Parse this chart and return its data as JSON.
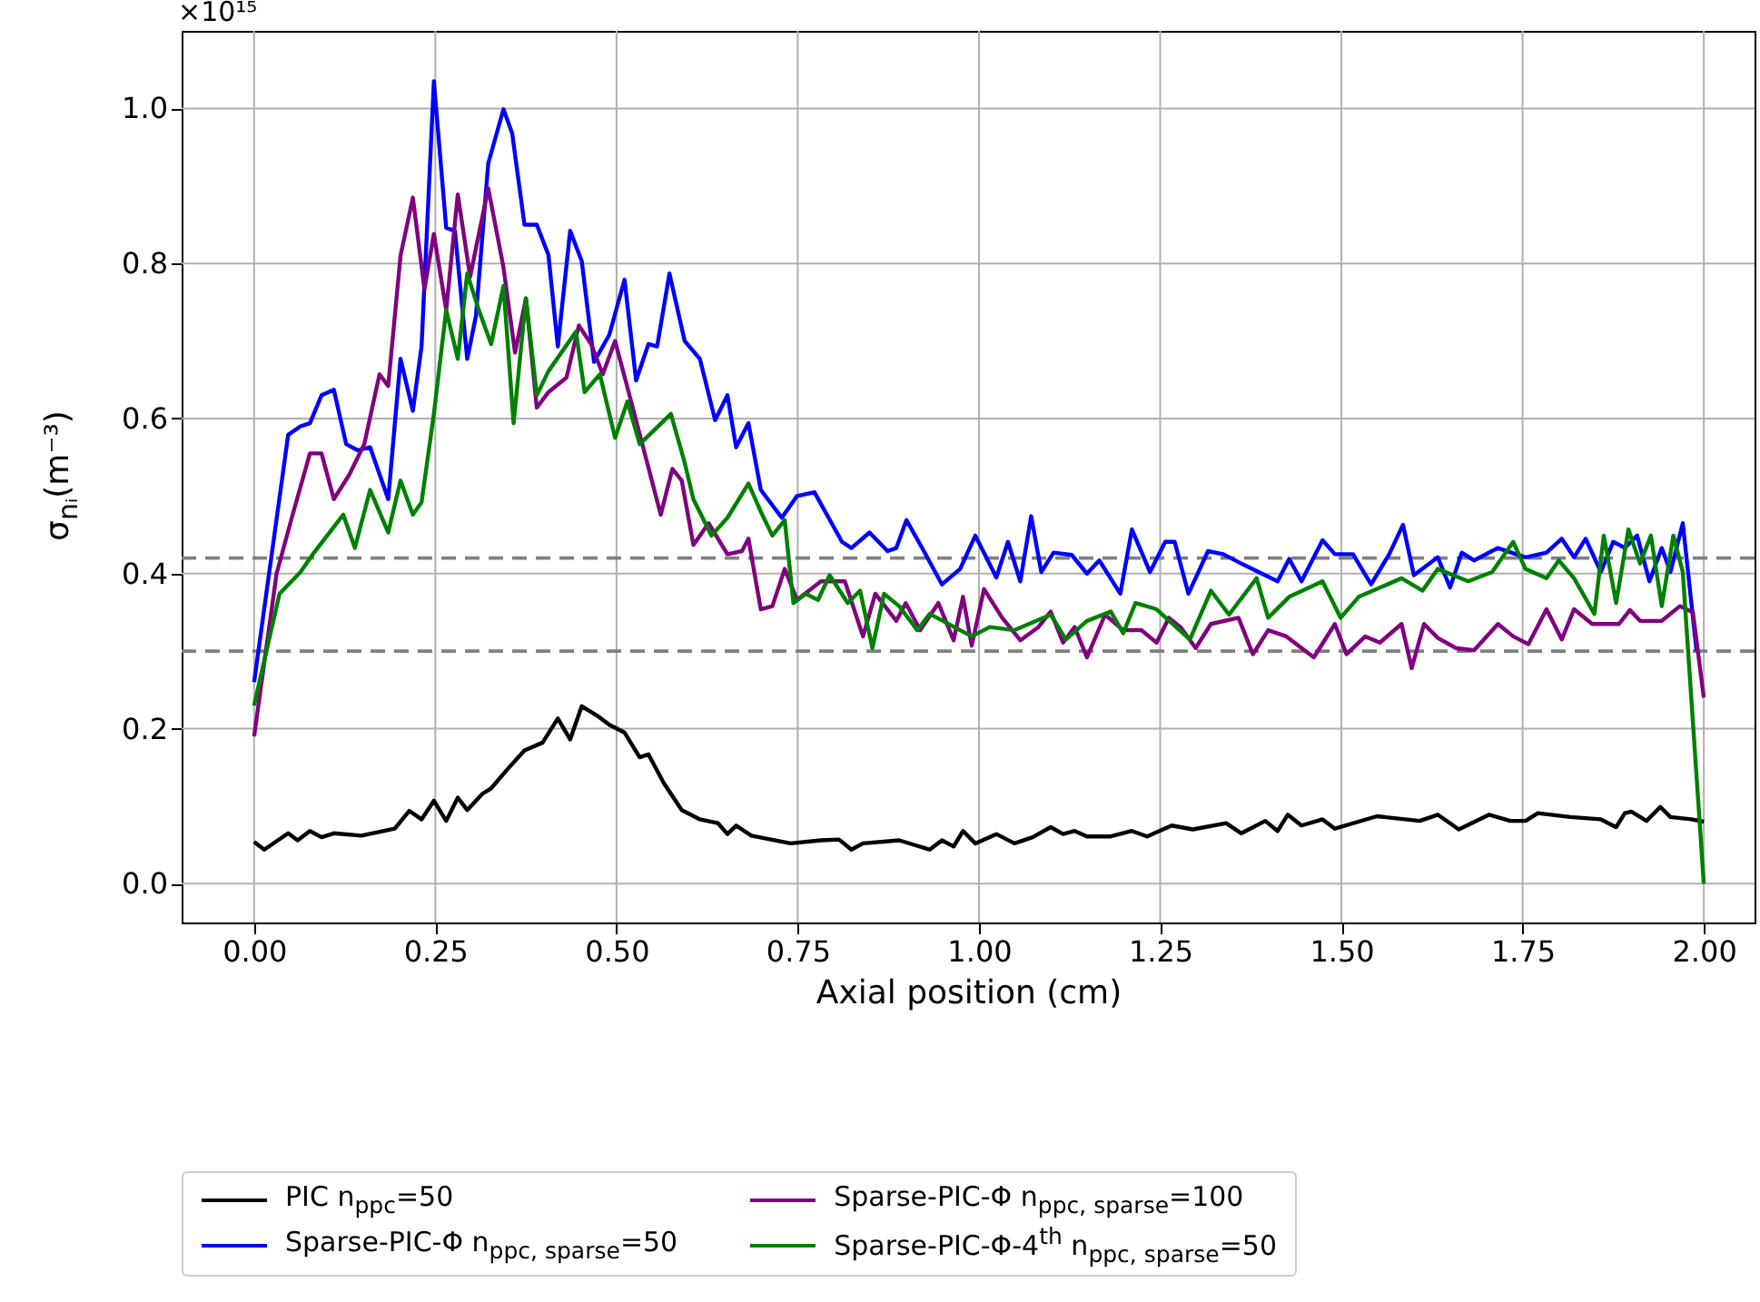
{
  "chart_data": {
    "type": "line",
    "xlabel": "Axial position (cm)",
    "ylabel": "σ$_{nᵢ}$(m⁻³)",
    "annotations": [
      "×10¹⁵"
    ],
    "xlim": [
      -0.1,
      2.07
    ],
    "ylim": [
      -0.05,
      1.1
    ],
    "xticks": [
      {
        "value": 0,
        "label": "0.00"
      },
      {
        "value": 0.25,
        "label": "0.25"
      },
      {
        "value": 0.5,
        "label": "0.50"
      },
      {
        "value": 0.75,
        "label": "0.75"
      },
      {
        "value": 1,
        "label": "1.00"
      },
      {
        "value": 1.25,
        "label": "1.25"
      },
      {
        "value": 1.5,
        "label": "1.50"
      },
      {
        "value": 1.75,
        "label": "1.75"
      },
      {
        "value": 2,
        "label": "2.00"
      }
    ],
    "yticks": [
      {
        "value": 0,
        "label": "0.0"
      },
      0.2,
      0.4,
      0.6,
      0.8,
      {
        "value": 1,
        "label": "1.0"
      }
    ],
    "grid": true,
    "legend": "bottom",
    "line_style": "solid",
    "ref_lines": [
      {
        "axis": "y",
        "value": 0.42,
        "color": "#808080",
        "line_style": "dashed"
      },
      {
        "axis": "y",
        "value": 0.3,
        "color": "#808080",
        "line_style": "dashed"
      }
    ],
    "series": [
      {
        "name": "PIC n$_{ppc}$=50",
        "color": "#000000",
        "x": [
          0,
          0.014,
          0.047,
          0.06,
          0.077,
          0.093,
          0.11,
          0.148,
          0.194,
          0.214,
          0.231,
          0.248,
          0.265,
          0.281,
          0.294,
          0.315,
          0.327,
          0.348,
          0.373,
          0.398,
          0.419,
          0.436,
          0.452,
          0.473,
          0.49,
          0.511,
          0.532,
          0.544,
          0.565,
          0.59,
          0.615,
          0.64,
          0.653,
          0.665,
          0.686,
          0.74,
          0.782,
          0.807,
          0.824,
          0.84,
          0.89,
          0.932,
          0.949,
          0.965,
          0.978,
          0.995,
          1.024,
          1.049,
          1.074,
          1.099,
          1.116,
          1.132,
          1.149,
          1.182,
          1.211,
          1.232,
          1.266,
          1.295,
          1.341,
          1.362,
          1.395,
          1.412,
          1.426,
          1.445,
          1.474,
          1.491,
          1.549,
          1.608,
          1.633,
          1.662,
          1.704,
          1.733,
          1.754,
          1.771,
          1.816,
          1.858,
          1.879,
          1.891,
          1.9,
          1.921,
          1.94,
          1.954,
          1.983,
          2.0
        ],
        "values": [
          0.054,
          0.044,
          0.065,
          0.056,
          0.068,
          0.06,
          0.065,
          0.062,
          0.071,
          0.094,
          0.083,
          0.107,
          0.081,
          0.111,
          0.095,
          0.116,
          0.123,
          0.146,
          0.172,
          0.182,
          0.213,
          0.186,
          0.229,
          0.217,
          0.205,
          0.195,
          0.163,
          0.167,
          0.13,
          0.095,
          0.083,
          0.078,
          0.064,
          0.075,
          0.062,
          0.052,
          0.056,
          0.057,
          0.044,
          0.052,
          0.056,
          0.044,
          0.056,
          0.048,
          0.068,
          0.052,
          0.064,
          0.052,
          0.06,
          0.073,
          0.064,
          0.068,
          0.061,
          0.061,
          0.068,
          0.061,
          0.075,
          0.07,
          0.078,
          0.065,
          0.081,
          0.068,
          0.089,
          0.075,
          0.083,
          0.071,
          0.087,
          0.081,
          0.089,
          0.07,
          0.089,
          0.081,
          0.081,
          0.091,
          0.086,
          0.083,
          0.073,
          0.091,
          0.093,
          0.081,
          0.099,
          0.086,
          0.083,
          0.08
        ]
      },
      {
        "name": "Sparse-PIC-Φ n$_{ppc, sparse}$=50",
        "color": "#0000ff",
        "x": [
          0,
          0.047,
          0.064,
          0.077,
          0.093,
          0.11,
          0.127,
          0.143,
          0.16,
          0.185,
          0.202,
          0.219,
          0.231,
          0.248,
          0.265,
          0.277,
          0.294,
          0.306,
          0.323,
          0.344,
          0.356,
          0.373,
          0.39,
          0.406,
          0.419,
          0.436,
          0.452,
          0.469,
          0.49,
          0.511,
          0.527,
          0.544,
          0.556,
          0.573,
          0.594,
          0.615,
          0.636,
          0.653,
          0.665,
          0.682,
          0.699,
          0.728,
          0.749,
          0.773,
          0.811,
          0.824,
          0.849,
          0.874,
          0.886,
          0.9,
          0.924,
          0.949,
          0.974,
          0.995,
          1.024,
          1.04,
          1.057,
          1.072,
          1.086,
          1.103,
          1.128,
          1.149,
          1.166,
          1.195,
          1.211,
          1.236,
          1.257,
          1.27,
          1.289,
          1.316,
          1.337,
          1.366,
          1.412,
          1.428,
          1.445,
          1.474,
          1.491,
          1.516,
          1.541,
          1.566,
          1.585,
          1.6,
          1.633,
          1.65,
          1.666,
          1.683,
          1.716,
          1.754,
          1.783,
          1.804,
          1.821,
          1.837,
          1.858,
          1.875,
          1.891,
          1.908,
          1.925,
          1.942,
          1.954,
          1.971,
          1.99
        ],
        "values": [
          0.26,
          0.579,
          0.59,
          0.594,
          0.63,
          0.637,
          0.567,
          0.559,
          0.563,
          0.496,
          0.677,
          0.61,
          0.693,
          1.035,
          0.846,
          0.842,
          0.677,
          0.732,
          0.929,
          0.999,
          0.968,
          0.85,
          0.85,
          0.811,
          0.693,
          0.842,
          0.803,
          0.673,
          0.708,
          0.779,
          0.649,
          0.696,
          0.693,
          0.787,
          0.7,
          0.677,
          0.598,
          0.63,
          0.563,
          0.594,
          0.508,
          0.472,
          0.5,
          0.505,
          0.441,
          0.433,
          0.453,
          0.429,
          0.433,
          0.469,
          0.429,
          0.386,
          0.406,
          0.449,
          0.395,
          0.441,
          0.39,
          0.474,
          0.402,
          0.427,
          0.424,
          0.4,
          0.417,
          0.374,
          0.457,
          0.402,
          0.441,
          0.441,
          0.374,
          0.429,
          0.425,
          0.411,
          0.39,
          0.419,
          0.39,
          0.443,
          0.425,
          0.425,
          0.386,
          0.425,
          0.463,
          0.398,
          0.421,
          0.382,
          0.427,
          0.417,
          0.433,
          0.421,
          0.427,
          0.445,
          0.421,
          0.445,
          0.402,
          0.441,
          0.433,
          0.449,
          0.39,
          0.433,
          0.402,
          0.465,
          0.3
        ]
      },
      {
        "name": "Sparse-PIC-Φ n$_{ppc, sparse}$=100",
        "color": "#800080",
        "x": [
          0,
          0.031,
          0.052,
          0.077,
          0.093,
          0.11,
          0.131,
          0.152,
          0.173,
          0.185,
          0.202,
          0.219,
          0.235,
          0.248,
          0.265,
          0.281,
          0.298,
          0.323,
          0.344,
          0.36,
          0.375,
          0.39,
          0.406,
          0.431,
          0.448,
          0.465,
          0.481,
          0.498,
          0.519,
          0.54,
          0.561,
          0.577,
          0.59,
          0.606,
          0.627,
          0.653,
          0.673,
          0.682,
          0.699,
          0.715,
          0.732,
          0.749,
          0.782,
          0.815,
          0.84,
          0.857,
          0.886,
          0.899,
          0.919,
          0.944,
          0.965,
          0.978,
          0.99,
          1.007,
          1.032,
          1.057,
          1.082,
          1.099,
          1.116,
          1.132,
          1.149,
          1.174,
          1.199,
          1.224,
          1.245,
          1.262,
          1.278,
          1.299,
          1.32,
          1.358,
          1.378,
          1.399,
          1.424,
          1.462,
          1.491,
          1.507,
          1.533,
          1.553,
          1.583,
          1.597,
          1.614,
          1.633,
          1.658,
          1.683,
          1.716,
          1.737,
          1.758,
          1.783,
          1.804,
          1.821,
          1.846,
          1.883,
          1.898,
          1.912,
          1.942,
          1.967,
          1.985,
          2.0
        ],
        "values": [
          0.19,
          0.4,
          0.472,
          0.555,
          0.555,
          0.496,
          0.527,
          0.567,
          0.657,
          0.642,
          0.81,
          0.885,
          0.767,
          0.838,
          0.74,
          0.889,
          0.783,
          0.897,
          0.795,
          0.685,
          0.755,
          0.614,
          0.634,
          0.653,
          0.72,
          0.696,
          0.657,
          0.7,
          0.626,
          0.551,
          0.476,
          0.535,
          0.52,
          0.437,
          0.465,
          0.425,
          0.429,
          0.445,
          0.354,
          0.358,
          0.406,
          0.366,
          0.39,
          0.39,
          0.319,
          0.374,
          0.339,
          0.362,
          0.327,
          0.362,
          0.314,
          0.37,
          0.307,
          0.38,
          0.343,
          0.314,
          0.331,
          0.351,
          0.311,
          0.331,
          0.292,
          0.347,
          0.327,
          0.327,
          0.311,
          0.343,
          0.331,
          0.304,
          0.335,
          0.343,
          0.296,
          0.327,
          0.319,
          0.292,
          0.335,
          0.296,
          0.319,
          0.311,
          0.335,
          0.278,
          0.335,
          0.317,
          0.304,
          0.301,
          0.335,
          0.319,
          0.309,
          0.354,
          0.315,
          0.354,
          0.335,
          0.335,
          0.353,
          0.339,
          0.339,
          0.358,
          0.35,
          0.24
        ]
      },
      {
        "name": "Sparse-PIC-Φ-4$^{th}$ n$_{ppc, sparse}$=50",
        "color": "#008000",
        "x": [
          0,
          0.035,
          0.064,
          0.081,
          0.123,
          0.139,
          0.16,
          0.185,
          0.202,
          0.219,
          0.231,
          0.248,
          0.265,
          0.281,
          0.294,
          0.31,
          0.327,
          0.344,
          0.358,
          0.375,
          0.39,
          0.406,
          0.444,
          0.456,
          0.477,
          0.498,
          0.515,
          0.532,
          0.575,
          0.594,
          0.606,
          0.631,
          0.653,
          0.682,
          0.699,
          0.715,
          0.732,
          0.744,
          0.761,
          0.778,
          0.794,
          0.819,
          0.836,
          0.853,
          0.869,
          0.89,
          0.915,
          0.932,
          0.99,
          1.015,
          1.049,
          1.099,
          1.12,
          1.149,
          1.182,
          1.199,
          1.216,
          1.245,
          1.291,
          1.32,
          1.345,
          1.383,
          1.399,
          1.428,
          1.474,
          1.499,
          1.524,
          1.583,
          1.612,
          1.633,
          1.675,
          1.708,
          1.737,
          1.754,
          1.783,
          1.8,
          1.821,
          1.849,
          1.862,
          1.879,
          1.896,
          1.912,
          1.927,
          1.942,
          1.958,
          1.971,
          2.0
        ],
        "values": [
          0.23,
          0.374,
          0.402,
          0.425,
          0.476,
          0.433,
          0.508,
          0.453,
          0.52,
          0.476,
          0.492,
          0.606,
          0.74,
          0.677,
          0.787,
          0.74,
          0.696,
          0.771,
          0.594,
          0.755,
          0.63,
          0.661,
          0.712,
          0.634,
          0.657,
          0.575,
          0.622,
          0.567,
          0.606,
          0.543,
          0.496,
          0.449,
          0.472,
          0.516,
          0.48,
          0.449,
          0.469,
          0.362,
          0.374,
          0.366,
          0.398,
          0.362,
          0.378,
          0.304,
          0.374,
          0.358,
          0.327,
          0.348,
          0.319,
          0.331,
          0.327,
          0.347,
          0.315,
          0.339,
          0.351,
          0.323,
          0.362,
          0.354,
          0.315,
          0.378,
          0.347,
          0.394,
          0.343,
          0.37,
          0.39,
          0.343,
          0.37,
          0.394,
          0.378,
          0.406,
          0.39,
          0.402,
          0.441,
          0.406,
          0.394,
          0.417,
          0.394,
          0.348,
          0.449,
          0.362,
          0.457,
          0.413,
          0.449,
          0.358,
          0.449,
          0.402,
          0
        ]
      }
    ]
  }
}
